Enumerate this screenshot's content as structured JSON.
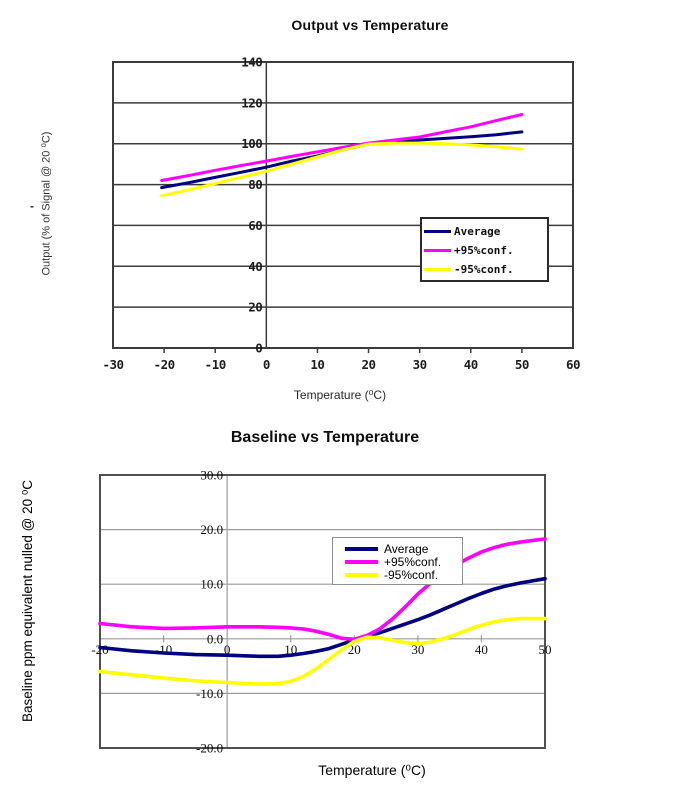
{
  "decor": {
    "stray_dash": "-"
  },
  "chart_data": [
    {
      "type": "line",
      "title": "Output vs Temperature",
      "xlabel": "Temperature (⁰C)",
      "ylabel": "Output (% of Signal @ 20 ⁰C)",
      "xlim": [
        -30,
        60
      ],
      "ylim": [
        0,
        140
      ],
      "x_ticks": [
        -30,
        -20,
        -10,
        0,
        10,
        20,
        30,
        40,
        50,
        60
      ],
      "x_tick_labels": [
        "-30",
        "-20",
        "-10",
        "0",
        "10",
        "20",
        "30",
        "40",
        "50",
        "60"
      ],
      "y_ticks": [
        0,
        20,
        40,
        60,
        80,
        100,
        120,
        140
      ],
      "y_tick_labels": [
        "0",
        "20",
        "40",
        "60",
        "80",
        "100",
        "120",
        "140"
      ],
      "value_axis_at_x": 0,
      "grid": "horizontal",
      "legend_position": "inside-right",
      "series": [
        {
          "name": "Average",
          "color": "#000080",
          "x": [
            -20.5,
            -15,
            -10,
            -5,
            0,
            5,
            10,
            15,
            20,
            25,
            30,
            35,
            40,
            45,
            50
          ],
          "y": [
            78.5,
            81,
            83.5,
            86,
            88.5,
            91.5,
            94,
            97,
            99.8,
            101,
            101.8,
            102.6,
            103.4,
            104.4,
            105.8
          ]
        },
        {
          "name": "+95%conf.",
          "color": "#ff00ff",
          "x": [
            -20.5,
            -15,
            -10,
            -5,
            0,
            5,
            10,
            15,
            20,
            25,
            30,
            35,
            40,
            45,
            50
          ],
          "y": [
            82,
            84.5,
            87,
            89.3,
            91.5,
            93.8,
            96,
            98.2,
            100.3,
            101.8,
            103.3,
            105.8,
            108.3,
            111.3,
            114.3
          ]
        },
        {
          "name": "-95%conf.",
          "color": "#ffff00",
          "x": [
            -20.5,
            -15,
            -10,
            -5,
            0,
            5,
            10,
            15,
            20,
            25,
            30,
            35,
            40,
            45,
            50
          ],
          "y": [
            74.5,
            77.5,
            80.5,
            83.5,
            86.5,
            90,
            93.5,
            97,
            99.8,
            100.3,
            100.3,
            100,
            99.4,
            98.5,
            97.3
          ]
        }
      ]
    },
    {
      "type": "line",
      "title": "Baseline vs Temperature",
      "xlabel": "Temperature (⁰C)",
      "ylabel": "Baseline ppm equivalent nulled @ 20 ⁰C",
      "xlim": [
        -20,
        50
      ],
      "ylim": [
        -20,
        30
      ],
      "x_ticks": [
        -20,
        -10,
        0,
        10,
        20,
        30,
        40,
        50
      ],
      "x_tick_labels": [
        "-20",
        "-10",
        "0",
        "10",
        "20",
        "30",
        "40",
        "50"
      ],
      "y_ticks": [
        30,
        20,
        10,
        0,
        -10,
        -20
      ],
      "y_tick_labels": [
        "30.0",
        "20.0",
        "10.0",
        "0.0",
        "-10.0",
        "-20.0"
      ],
      "value_axis_at_x": 0,
      "grid": "horizontal",
      "legend_position": "inside-top-center",
      "series": [
        {
          "name": "Average",
          "color": "#000080",
          "x": [
            -20,
            -15,
            -10,
            -5,
            0,
            5,
            8,
            10,
            12,
            14,
            16,
            18,
            20,
            22,
            24,
            26,
            28,
            30,
            32,
            34,
            36,
            38,
            40,
            42,
            44,
            46,
            48,
            50
          ],
          "y": [
            -1.6,
            -2.2,
            -2.6,
            -2.9,
            -3.0,
            -3.2,
            -3.2,
            -3.0,
            -2.7,
            -2.3,
            -1.8,
            -1.0,
            -0.2,
            0.5,
            1.1,
            1.9,
            2.7,
            3.5,
            4.4,
            5.4,
            6.4,
            7.4,
            8.3,
            9.1,
            9.7,
            10.2,
            10.6,
            11.0
          ]
        },
        {
          "name": "+95%conf.",
          "color": "#ff00ff",
          "x": [
            -20,
            -15,
            -10,
            -5,
            0,
            5,
            8,
            10,
            12,
            14,
            16,
            18,
            20,
            22,
            24,
            26,
            28,
            30,
            32,
            34,
            36,
            38,
            40,
            42,
            44,
            46,
            48,
            50
          ],
          "y": [
            2.8,
            2.2,
            1.9,
            2.0,
            2.2,
            2.2,
            2.1,
            2.0,
            1.8,
            1.4,
            0.8,
            0.1,
            -0.1,
            0.6,
            1.8,
            3.6,
            5.8,
            8.2,
            10.2,
            12.0,
            13.5,
            14.8,
            15.9,
            16.7,
            17.3,
            17.7,
            18.0,
            18.3
          ]
        },
        {
          "name": "-95%conf.",
          "color": "#ffff00",
          "x": [
            -20,
            -15,
            -10,
            -5,
            0,
            5,
            8,
            10,
            12,
            14,
            16,
            18,
            20,
            22,
            24,
            26,
            28,
            30,
            32,
            34,
            36,
            38,
            40,
            42,
            44,
            46,
            48,
            50
          ],
          "y": [
            -6.0,
            -6.6,
            -7.2,
            -7.7,
            -8.0,
            -8.3,
            -8.2,
            -7.8,
            -6.9,
            -5.5,
            -3.8,
            -2.0,
            -0.5,
            0.3,
            0.2,
            -0.3,
            -0.7,
            -0.9,
            -0.6,
            0.0,
            0.8,
            1.7,
            2.5,
            3.1,
            3.5,
            3.7,
            3.7,
            3.7
          ]
        }
      ]
    }
  ]
}
